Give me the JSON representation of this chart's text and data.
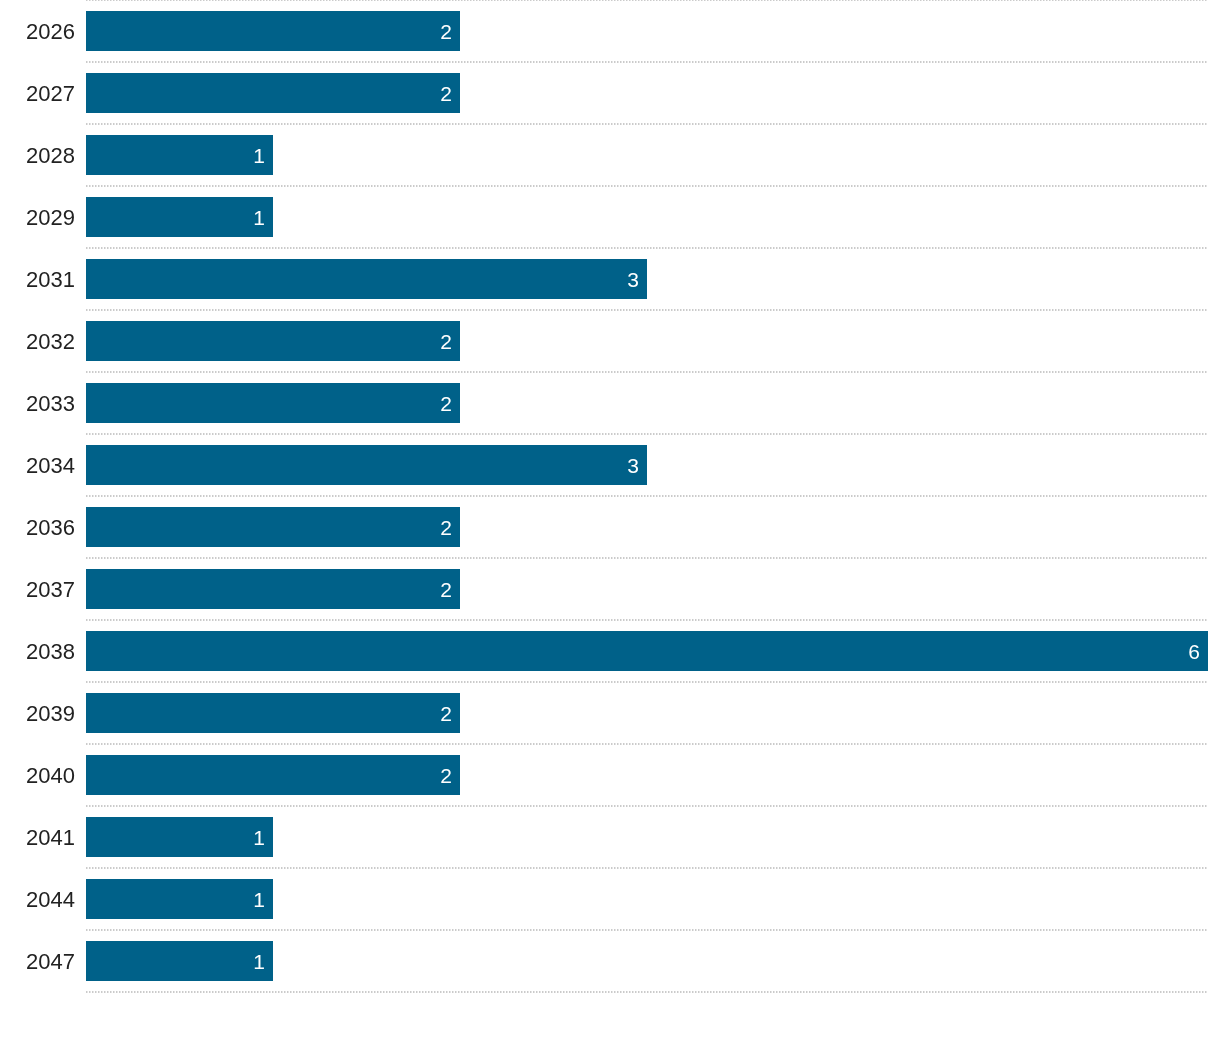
{
  "chart_data": {
    "type": "bar",
    "orientation": "horizontal",
    "categories": [
      "2026",
      "2027",
      "2028",
      "2029",
      "2031",
      "2032",
      "2033",
      "2034",
      "2036",
      "2037",
      "2038",
      "2039",
      "2040",
      "2041",
      "2044",
      "2047"
    ],
    "values": [
      2,
      2,
      1,
      1,
      3,
      2,
      2,
      3,
      2,
      2,
      6,
      2,
      2,
      1,
      1,
      1
    ],
    "color": "#006189",
    "data_labels": true,
    "grid": "y"
  }
}
